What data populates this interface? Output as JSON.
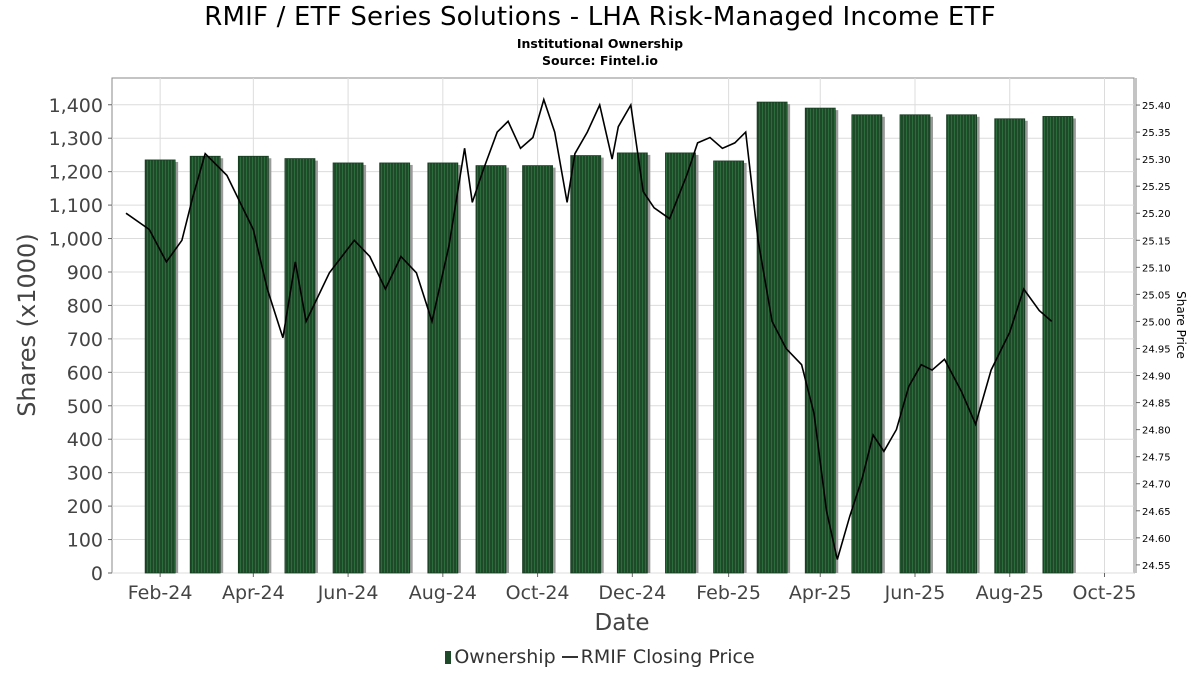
{
  "chart_data": {
    "type": "bar",
    "title": "RMIF / ETF Series Solutions - LHA Risk-Managed Income ETF",
    "subtitle_lines": [
      "Institutional Ownership",
      "Source: Fintel.io"
    ],
    "xlabel": "Date",
    "ylabel": "Shares (x1000)",
    "y2label": "Share Price",
    "ylim": [
      0,
      1480
    ],
    "y2lim": [
      24.535,
      25.45
    ],
    "x_range": [
      "2024-01-01",
      "2025-10-20"
    ],
    "grid": true,
    "legend_position": "bottom",
    "y_ticks": [
      0,
      100,
      200,
      300,
      400,
      500,
      600,
      700,
      800,
      900,
      1000,
      1100,
      1200,
      1300,
      1400
    ],
    "y_tick_labels": [
      "0",
      "100",
      "200",
      "300",
      "400",
      "500",
      "600",
      "700",
      "800",
      "900",
      "1,000",
      "1,100",
      "1,200",
      "1,300",
      "1,400"
    ],
    "y2_ticks": [
      24.55,
      24.6,
      24.65,
      24.7,
      24.75,
      24.8,
      24.85,
      24.9,
      24.95,
      25.0,
      25.05,
      25.1,
      25.15,
      25.2,
      25.25,
      25.3,
      25.35,
      25.4
    ],
    "y2_tick_labels": [
      "24.55",
      "24.60",
      "24.65",
      "24.70",
      "24.75",
      "24.80",
      "24.85",
      "24.90",
      "24.95",
      "25.00",
      "25.05",
      "25.10",
      "25.15",
      "25.20",
      "25.25",
      "25.30",
      "25.35",
      "25.40"
    ],
    "x_ticks": [
      "2024-02-01",
      "2024-04-01",
      "2024-06-01",
      "2024-08-01",
      "2024-10-01",
      "2024-12-01",
      "2025-02-01",
      "2025-04-01",
      "2025-06-01",
      "2025-08-01",
      "2025-10-01"
    ],
    "x_tick_labels": [
      "Feb-24",
      "Apr-24",
      "Jun-24",
      "Aug-24",
      "Oct-24",
      "Dec-24",
      "Feb-25",
      "Apr-25",
      "Jun-25",
      "Aug-25",
      "Oct-25"
    ],
    "series": [
      {
        "name": "Ownership",
        "type": "bar",
        "color": "#1f4a2a",
        "x": [
          "2024-02-01",
          "2024-03-01",
          "2024-04-01",
          "2024-05-01",
          "2024-06-01",
          "2024-07-01",
          "2024-08-01",
          "2024-09-01",
          "2024-10-01",
          "2024-11-01",
          "2024-12-01",
          "2025-01-01",
          "2025-02-01",
          "2025-03-01",
          "2025-04-01",
          "2025-05-01",
          "2025-06-01",
          "2025-07-01",
          "2025-08-01",
          "2025-09-01"
        ],
        "values": [
          1235,
          1246,
          1246,
          1239,
          1226,
          1226,
          1226,
          1218,
          1218,
          1248,
          1256,
          1256,
          1232,
          1408,
          1390,
          1370,
          1370,
          1370,
          1358,
          1365
        ]
      },
      {
        "name": "RMIF Closing Price",
        "type": "line",
        "color": "#000000",
        "x": [
          "2024-01-10",
          "2024-01-25",
          "2024-02-05",
          "2024-02-15",
          "2024-02-22",
          "2024-03-01",
          "2024-03-15",
          "2024-04-01",
          "2024-04-10",
          "2024-04-20",
          "2024-04-28",
          "2024-05-05",
          "2024-05-20",
          "2024-06-05",
          "2024-06-15",
          "2024-06-25",
          "2024-07-05",
          "2024-07-15",
          "2024-07-25",
          "2024-08-05",
          "2024-08-15",
          "2024-08-20",
          "2024-08-27",
          "2024-09-05",
          "2024-09-12",
          "2024-09-20",
          "2024-09-28",
          "2024-10-05",
          "2024-10-12",
          "2024-10-20",
          "2024-10-25",
          "2024-11-02",
          "2024-11-10",
          "2024-11-18",
          "2024-11-22",
          "2024-11-30",
          "2024-12-08",
          "2024-12-15",
          "2024-12-25",
          "2025-01-05",
          "2025-01-12",
          "2025-01-20",
          "2025-01-28",
          "2025-02-05",
          "2025-02-12",
          "2025-02-20",
          "2025-03-01",
          "2025-03-10",
          "2025-03-20",
          "2025-03-28",
          "2025-04-05",
          "2025-04-12",
          "2025-04-20",
          "2025-04-28",
          "2025-05-05",
          "2025-05-12",
          "2025-05-20",
          "2025-05-28",
          "2025-06-05",
          "2025-06-12",
          "2025-06-20",
          "2025-07-01",
          "2025-07-10",
          "2025-07-20",
          "2025-08-01",
          "2025-08-10",
          "2025-08-20",
          "2025-08-28"
        ],
        "values": [
          25.2,
          25.17,
          25.11,
          25.15,
          25.23,
          25.31,
          25.27,
          25.17,
          25.06,
          24.97,
          25.11,
          25.0,
          25.09,
          25.15,
          25.12,
          25.06,
          25.12,
          25.09,
          25.0,
          25.14,
          25.32,
          25.22,
          25.28,
          25.35,
          25.37,
          25.32,
          25.34,
          25.41,
          25.35,
          25.22,
          25.31,
          25.35,
          25.4,
          25.3,
          25.36,
          25.4,
          25.24,
          25.21,
          25.19,
          25.27,
          25.33,
          25.34,
          25.32,
          25.33,
          25.35,
          25.15,
          25.0,
          24.95,
          24.92,
          24.83,
          24.65,
          24.56,
          24.64,
          24.71,
          24.79,
          24.76,
          24.8,
          24.88,
          24.92,
          24.91,
          24.93,
          24.87,
          24.81,
          24.91,
          24.98,
          25.06,
          25.02,
          25.0
        ]
      }
    ]
  }
}
